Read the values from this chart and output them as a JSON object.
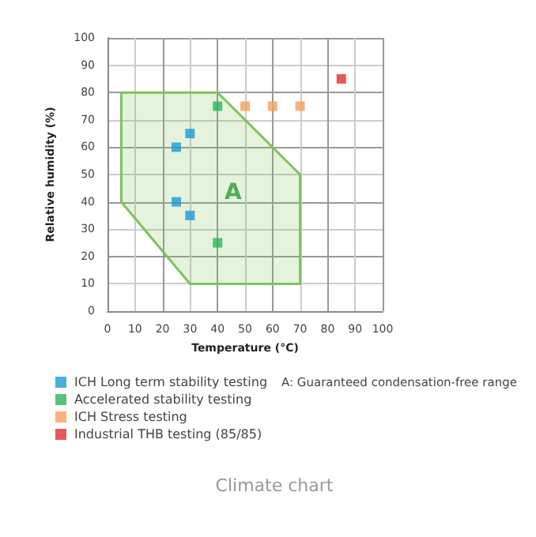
{
  "chart_data": {
    "type": "scatter",
    "title": "Climate chart",
    "xlabel": "Temperature (°C)",
    "ylabel": "Relative humidity (%)",
    "xlim": [
      0,
      100
    ],
    "xticks": [
      0,
      10,
      20,
      30,
      40,
      50,
      60,
      70,
      80,
      90,
      100
    ],
    "ylim": [
      0,
      100
    ],
    "yticks": [
      0,
      10,
      20,
      30,
      40,
      50,
      60,
      70,
      80,
      90,
      100
    ],
    "grid": true,
    "legend": "bottom left",
    "marker": "square",
    "annotations": [
      "A",
      "A: Guaranteed condensation-free range"
    ],
    "series": [
      {
        "type": "area",
        "marker": "none",
        "color": "#7dc35a",
        "x": [
          5,
          5,
          40,
          70,
          70,
          30,
          5
        ],
        "values": [
          40,
          80,
          80,
          50,
          10,
          10,
          40
        ]
      },
      {
        "name": "ICH Long term stability testing",
        "color": "#1a9bd7",
        "x": [
          25,
          30,
          25,
          30
        ],
        "values": [
          60,
          65,
          40,
          35
        ]
      },
      {
        "name": "Accelerated stability testing",
        "color": "#2db35a",
        "x": [
          40,
          40
        ],
        "values": [
          75,
          25
        ]
      },
      {
        "name": "ICH Stress testing",
        "color": "#f5a05a",
        "x": [
          50,
          60,
          70
        ],
        "values": [
          75,
          75,
          75
        ]
      },
      {
        "name": "Industrial THB testing (85/85)",
        "color": "#e03030",
        "x": [
          85
        ],
        "values": [
          85
        ]
      }
    ]
  }
}
